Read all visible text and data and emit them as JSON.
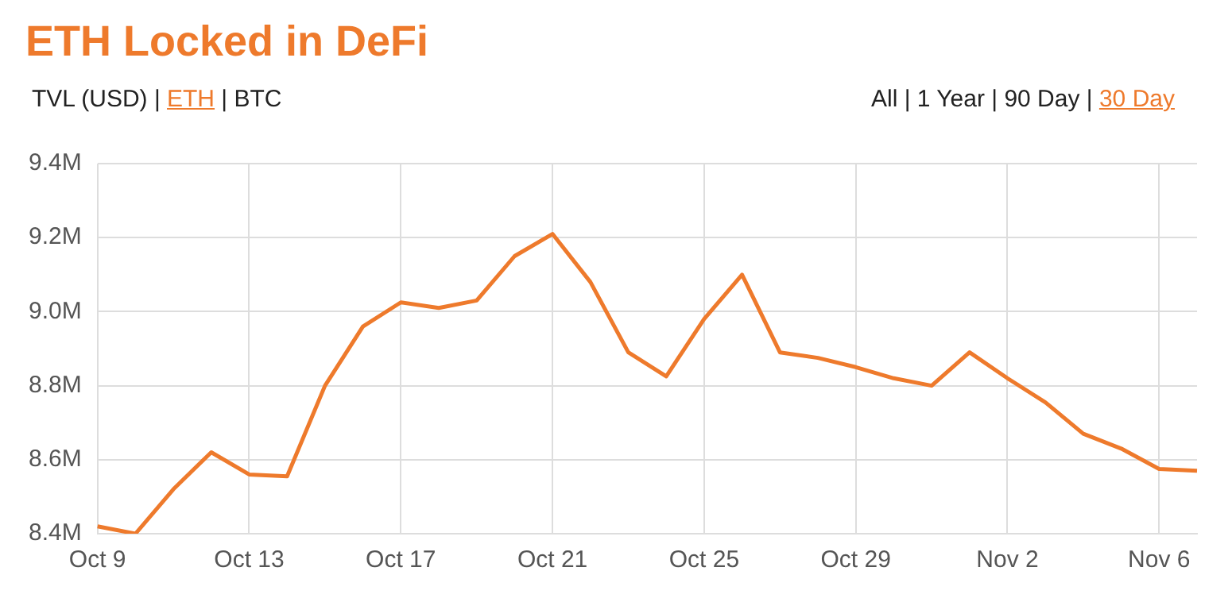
{
  "chart_data": {
    "type": "line",
    "title": "ETH Locked in DeFi",
    "annotations": [
      "TVL (USD) | ETH | BTC",
      "All | 1 Year | 90 Day | 30 Day"
    ],
    "categories": [
      "Oct 9",
      null,
      null,
      null,
      "Oct 13",
      null,
      null,
      null,
      "Oct 17",
      null,
      null,
      null,
      "Oct 21",
      null,
      null,
      null,
      "Oct 25",
      null,
      null,
      null,
      "Oct 29",
      null,
      null,
      null,
      "Nov 2",
      null,
      null,
      null,
      "Nov 6",
      null
    ],
    "series": [
      {
        "color": "#ee7a2c",
        "values": [
          8.42,
          8.4,
          8.52,
          8.62,
          8.56,
          8.555,
          8.8,
          8.96,
          9.025,
          9.01,
          9.03,
          9.15,
          9.21,
          9.08,
          8.89,
          8.825,
          8.98,
          9.1,
          8.89,
          8.875,
          8.85,
          8.82,
          8.8,
          8.89,
          8.82,
          8.755,
          8.67,
          8.63,
          8.575,
          8.57
        ]
      }
    ],
    "ylim": [
      8.4,
      9.4
    ],
    "yticks": [
      {
        "value": 8.4,
        "label": "8.4M"
      },
      {
        "value": 8.6,
        "label": "8.6M"
      },
      {
        "value": 8.8,
        "label": "8.8M"
      },
      {
        "value": 9.0,
        "label": "9.0M"
      },
      {
        "value": 9.2,
        "label": "9.2M"
      },
      {
        "value": 9.4,
        "label": "9.4M"
      }
    ],
    "grid": true,
    "legend": false,
    "marker": "none",
    "line_style": "solid"
  }
}
